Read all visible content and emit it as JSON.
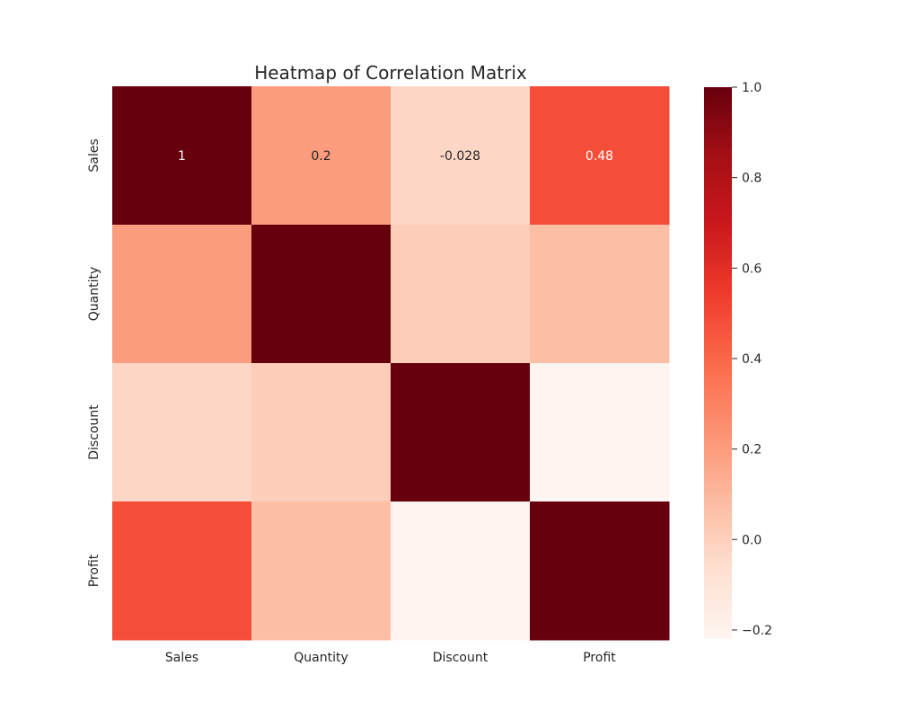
{
  "chart_data": {
    "type": "heatmap",
    "title": "Heatmap of Correlation Matrix",
    "x_categories": [
      "Sales",
      "Quantity",
      "Discount",
      "Profit"
    ],
    "y_categories": [
      "Sales",
      "Quantity",
      "Discount",
      "Profit"
    ],
    "matrix": [
      [
        1.0,
        0.2,
        -0.028,
        0.48
      ],
      [
        0.2,
        1.0,
        0.01,
        0.07
      ],
      [
        -0.028,
        0.01,
        1.0,
        -0.22
      ],
      [
        0.48,
        0.07,
        -0.22,
        1.0
      ]
    ],
    "annotations": [
      [
        {
          "col": 0,
          "text": "1"
        },
        {
          "col": 1,
          "text": "0.2"
        },
        {
          "col": 2,
          "text": "-0.028"
        },
        {
          "col": 3,
          "text": "0.48"
        }
      ],
      [],
      [],
      []
    ],
    "colormap": "Reds",
    "colorbar": {
      "ticks": [
        1.0,
        0.8,
        0.6,
        0.4,
        0.2,
        0.0,
        -0.2
      ],
      "tick_labels": [
        "1.0",
        "0.8",
        "0.6",
        "0.4",
        "0.2",
        "0.0",
        "−0.2"
      ],
      "range": [
        -0.22,
        1.0
      ]
    },
    "grid": false
  }
}
